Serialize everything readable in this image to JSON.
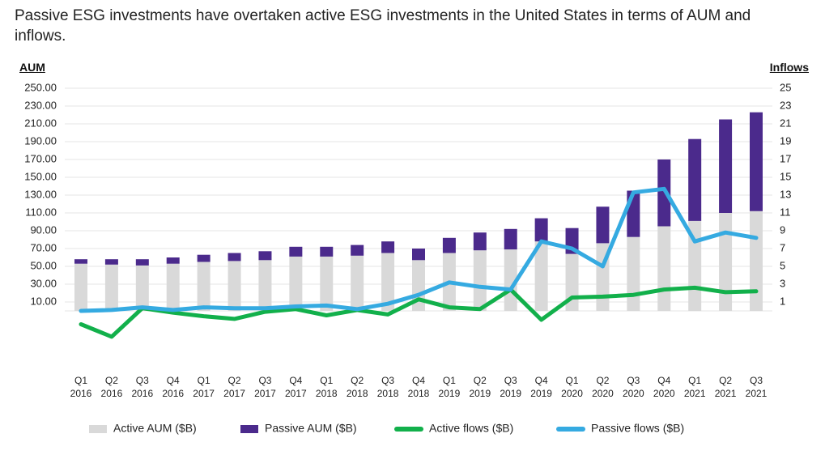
{
  "chart_data": {
    "type": "bar",
    "title": "Passive ESG investments have overtaken active ESG investments in the United States in terms of AUM and inflows.",
    "y_label": "AUM",
    "y2_label": "Inflows",
    "categories": [
      "Q1 2016",
      "Q2 2016",
      "Q3 2016",
      "Q4 2016",
      "Q1 2017",
      "Q2 2017",
      "Q3 2017",
      "Q4 2017",
      "Q1 2018",
      "Q2 2018",
      "Q3 2018",
      "Q4 2018",
      "Q1 2019",
      "Q2 2019",
      "Q3 2019",
      "Q4 2019",
      "Q1 2020",
      "Q2 2020",
      "Q3 2020",
      "Q4 2020",
      "Q1 2021",
      "Q2 2021",
      "Q3 2021"
    ],
    "series": [
      {
        "name": "Active AUM ($B)",
        "type": "bar",
        "color": "#d9d9d9",
        "values": [
          53,
          52,
          51,
          53,
          55,
          56,
          57,
          61,
          61,
          62,
          65,
          57,
          65,
          68,
          69,
          78,
          64,
          76,
          83,
          95,
          101,
          110,
          112
        ]
      },
      {
        "name": "Passive AUM ($B)",
        "type": "bar",
        "color": "#4b2a8c",
        "values": [
          5,
          6,
          7,
          7,
          8,
          9,
          10,
          11,
          11,
          12,
          13,
          13,
          17,
          20,
          23,
          26,
          29,
          41,
          52,
          75,
          92,
          105,
          111
        ]
      },
      {
        "name": "Active flows ($B)",
        "type": "line",
        "axis": "y2",
        "color": "#12b04b",
        "values": [
          -1.5,
          -2.9,
          0.3,
          -0.2,
          -0.6,
          -0.9,
          -0.1,
          0.2,
          -0.5,
          0.1,
          -0.4,
          1.3,
          0.4,
          0.2,
          2.4,
          -1.0,
          1.5,
          1.6,
          1.8,
          2.4,
          2.6,
          2.1,
          2.2
        ]
      },
      {
        "name": "Passive flows ($B)",
        "type": "line",
        "axis": "y2",
        "color": "#35aae1",
        "values": [
          0,
          0.1,
          0.4,
          0.1,
          0.4,
          0.3,
          0.3,
          0.5,
          0.6,
          0.2,
          0.8,
          1.8,
          3.2,
          2.7,
          2.4,
          7.8,
          7.0,
          5.0,
          13.3,
          13.7,
          7.8,
          8.8,
          8.2
        ]
      }
    ],
    "ylim": [
      -50,
      250
    ],
    "yticks": [
      {
        "value": 10,
        "label": "10.00"
      },
      {
        "value": 30,
        "label": "30.00"
      },
      {
        "value": 50,
        "label": "50.00"
      },
      {
        "value": 70,
        "label": "70.00"
      },
      {
        "value": 90,
        "label": "90.00"
      },
      {
        "value": 110,
        "label": "110.00"
      },
      {
        "value": 130,
        "label": "130.00"
      },
      {
        "value": 150,
        "label": "150.00"
      },
      {
        "value": 170,
        "label": "170.00"
      },
      {
        "value": 190,
        "label": "190.00"
      },
      {
        "value": 210,
        "label": "210.00"
      },
      {
        "value": 230,
        "label": "230.00"
      },
      {
        "value": 250,
        "label": "250.00"
      }
    ],
    "y2lim": [
      -5,
      25
    ],
    "y2ticks": [
      1,
      3,
      5,
      7,
      9,
      11,
      13,
      15,
      17,
      19,
      21,
      23,
      25
    ],
    "grid": true,
    "legend": "bottom"
  }
}
